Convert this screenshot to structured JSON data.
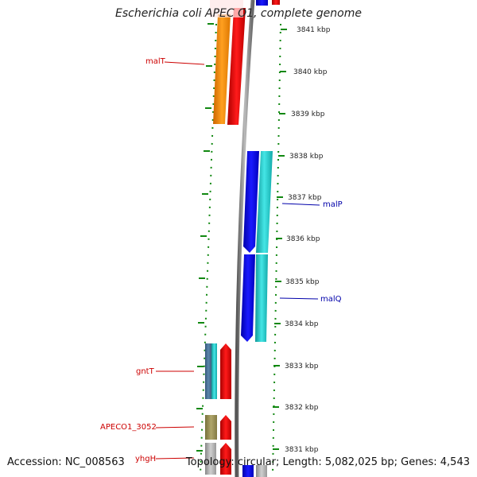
{
  "header": {
    "title": "Escherichia coli APEC O1, complete genome"
  },
  "footer": {
    "accession": "Accession: NC_008563",
    "summary": "Topology: circular; Length: 5,082,025 bp; Genes: 4,543"
  },
  "ruler": {
    "unit": "kbp",
    "ticks": [
      "3841 kbp",
      "3840 kbp",
      "3839 kbp",
      "3838 kbp",
      "3837 kbp",
      "3836 kbp",
      "3835 kbp",
      "3834 kbp",
      "3833 kbp",
      "3832 kbp",
      "3831 kbp"
    ]
  },
  "genes": [
    {
      "label": "malT",
      "color": "#cc0000"
    },
    {
      "label": "malP",
      "color": "#0000aa"
    },
    {
      "label": "malQ",
      "color": "#0000aa"
    },
    {
      "label": "gntT",
      "color": "#cc0000"
    },
    {
      "label": "APECO1_3052",
      "color": "#cc0000"
    },
    {
      "label": "yhgH",
      "color": "#cc0000"
    }
  ],
  "colors": {
    "tick_green": "#118811",
    "forward_red": "#ff0000",
    "forward_orange": "#ff8800",
    "reverse_blue": "#0000ee",
    "reverse_cyan": "#22cccc",
    "backbone_gray": "#888888"
  }
}
